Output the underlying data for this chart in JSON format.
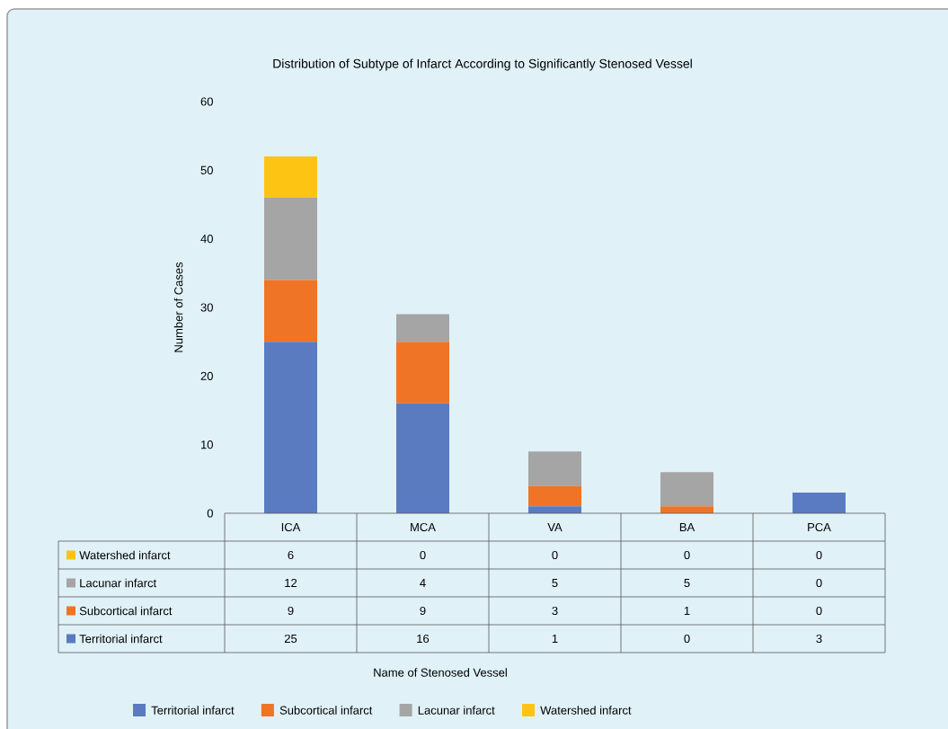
{
  "chart_data": {
    "type": "bar",
    "stacked": true,
    "title": "Distribution of Subtype of Infarct According to Significantly Stenosed Vessel",
    "annotations": [
      "Name of Stenosed Vessel"
    ],
    "ylabel": "Number of Cases",
    "categories": [
      "ICA",
      "MCA",
      "VA",
      "BA",
      "PCA"
    ],
    "series": [
      {
        "name": "Territorial infarct",
        "color": "#5a7bc0",
        "values": [
          25,
          16,
          1,
          0,
          3
        ]
      },
      {
        "name": "Subcortical infarct",
        "color": "#f07426",
        "values": [
          9,
          9,
          3,
          1,
          0
        ]
      },
      {
        "name": "Lacunar infarct",
        "color": "#a5a5a5",
        "values": [
          12,
          4,
          5,
          5,
          0
        ]
      },
      {
        "name": "Watershed infarct",
        "color": "#fdc413",
        "values": [
          6,
          0,
          0,
          0,
          0
        ]
      }
    ],
    "ylim": [
      0,
      60
    ],
    "yticks": [
      0,
      10,
      20,
      30,
      40,
      50,
      60
    ],
    "data_labels": true,
    "legend": "bottom"
  }
}
